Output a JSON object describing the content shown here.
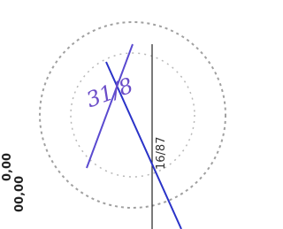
{
  "stamp": {
    "number": "16/87"
  },
  "handwriting": {
    "note": "31/8"
  },
  "amounts": [
    "00,00",
    "0,00"
  ]
}
